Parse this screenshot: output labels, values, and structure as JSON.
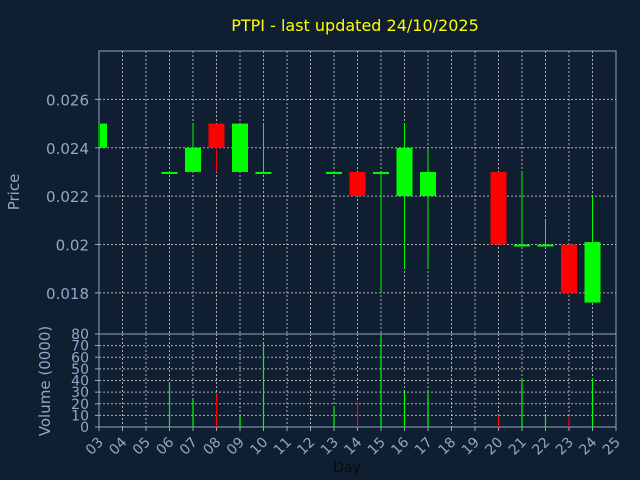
{
  "chart_data": {
    "type": "candlestick",
    "title": "PTPI - last updated 24/10/2025",
    "xlabel": "Day",
    "ylabel": "Price",
    "volume_label": "Volume (0000)",
    "x_ticks": [
      "03",
      "04",
      "05",
      "06",
      "07",
      "08",
      "09",
      "10",
      "11",
      "12",
      "13",
      "14",
      "15",
      "16",
      "17",
      "18",
      "19",
      "20",
      "21",
      "22",
      "23",
      "24",
      "25"
    ],
    "price_axis": {
      "ylim": [
        0.0163,
        0.028
      ],
      "ticks": [
        "0.026",
        "0.024",
        "0.022",
        "0.02",
        "0.018"
      ]
    },
    "volume_axis": {
      "ylim": [
        0,
        80
      ],
      "ticks": [
        "80",
        "70",
        "60",
        "50",
        "40",
        "30",
        "20",
        "10",
        "0"
      ]
    },
    "grid": true,
    "colors": {
      "up": "#00ff00",
      "down": "#ff0000",
      "title": "#ffff00",
      "axis_text": "#8fa8c8",
      "grid": "#c8c8c8",
      "background": "#0f1f31"
    },
    "candles": [
      {
        "day": "03",
        "open": 0.024,
        "high": 0.025,
        "low": 0.024,
        "close": 0.025,
        "volume": 0
      },
      {
        "day": "06",
        "open": 0.023,
        "high": 0.023,
        "low": 0.023,
        "close": 0.023,
        "volume": 38
      },
      {
        "day": "07",
        "open": 0.023,
        "high": 0.025,
        "low": 0.023,
        "close": 0.024,
        "volume": 24
      },
      {
        "day": "08",
        "open": 0.025,
        "high": 0.025,
        "low": 0.023,
        "close": 0.024,
        "volume": 28
      },
      {
        "day": "09",
        "open": 0.023,
        "high": 0.025,
        "low": 0.023,
        "close": 0.025,
        "volume": 10
      },
      {
        "day": "10",
        "open": 0.023,
        "high": 0.025,
        "low": 0.023,
        "close": 0.023,
        "volume": 72
      },
      {
        "day": "13",
        "open": 0.023,
        "high": 0.023,
        "low": 0.023,
        "close": 0.023,
        "volume": 18
      },
      {
        "day": "14",
        "open": 0.023,
        "high": 0.023,
        "low": 0.022,
        "close": 0.022,
        "volume": 22
      },
      {
        "day": "15",
        "open": 0.023,
        "high": 0.023,
        "low": 0.018,
        "close": 0.023,
        "volume": 78
      },
      {
        "day": "16",
        "open": 0.022,
        "high": 0.025,
        "low": 0.019,
        "close": 0.024,
        "volume": 30
      },
      {
        "day": "17",
        "open": 0.022,
        "high": 0.024,
        "low": 0.019,
        "close": 0.023,
        "volume": 32
      },
      {
        "day": "20",
        "open": 0.023,
        "high": 0.023,
        "low": 0.02,
        "close": 0.02,
        "volume": 10
      },
      {
        "day": "21",
        "open": 0.02,
        "high": 0.023,
        "low": 0.02,
        "close": 0.02,
        "volume": 42
      },
      {
        "day": "22",
        "open": 0.02,
        "high": 0.021,
        "low": 0.02,
        "close": 0.02,
        "volume": 10
      },
      {
        "day": "23",
        "open": 0.02,
        "high": 0.02,
        "low": 0.018,
        "close": 0.018,
        "volume": 9
      },
      {
        "day": "24",
        "open": 0.0176,
        "high": 0.022,
        "low": 0.0176,
        "close": 0.0201,
        "volume": 42
      }
    ]
  }
}
